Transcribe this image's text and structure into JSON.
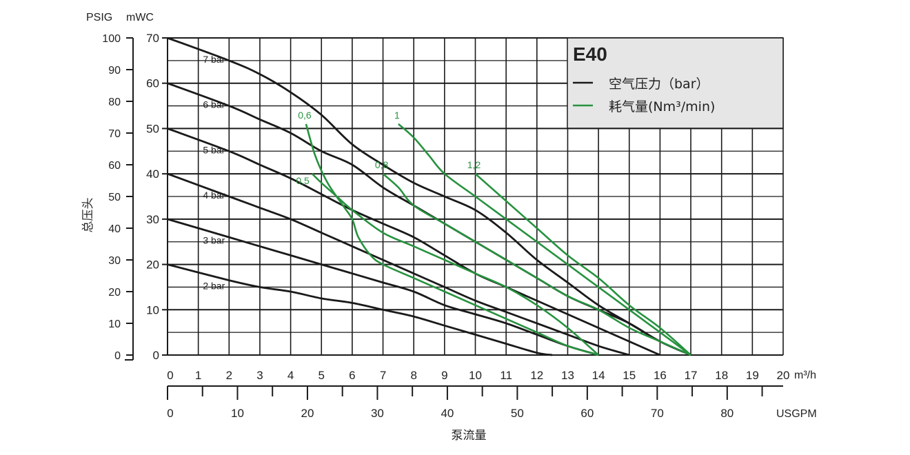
{
  "chart_data": {
    "type": "line",
    "title": "E40",
    "xlabel": "泵流量",
    "ylabel": "总压头",
    "x_unit": "m³/h",
    "x2_unit": "USGPM",
    "y_unit": "mWC",
    "y2_unit": "PSIG",
    "xlim": [
      0,
      20
    ],
    "ylim": [
      0,
      70
    ],
    "x2lim": [
      0,
      88
    ],
    "y2lim": [
      0,
      100
    ],
    "x_ticks": [
      "0",
      "1",
      "2",
      "3",
      "4",
      "5",
      "6",
      "7",
      "8",
      "9",
      "10",
      "11",
      "12",
      "13",
      "14",
      "15",
      "16",
      "17",
      "18",
      "19",
      "20"
    ],
    "y_ticks": [
      "0",
      "10",
      "20",
      "30",
      "40",
      "50",
      "60",
      "70"
    ],
    "x2_ticks": [
      "0",
      "10",
      "20",
      "30",
      "40",
      "50",
      "60",
      "70",
      "80"
    ],
    "y2_ticks": [
      "0",
      "10",
      "20",
      "30",
      "40",
      "50",
      "60",
      "70",
      "80",
      "90",
      "100"
    ],
    "grid": true,
    "legend": {
      "position": "top-right",
      "items": [
        {
          "label": "空气压力（bar）",
          "color": "#1a1a1a"
        },
        {
          "label": "耗气量(Nm³/min)",
          "color": "#27923f"
        }
      ]
    },
    "pressure_series": [
      {
        "name": "7 bar",
        "points": [
          [
            0,
            70
          ],
          [
            2,
            65
          ],
          [
            3,
            62
          ],
          [
            4,
            58
          ],
          [
            5,
            53
          ],
          [
            6,
            46.5
          ],
          [
            7,
            42
          ],
          [
            8,
            38
          ],
          [
            9,
            35
          ],
          [
            10,
            32
          ],
          [
            11,
            27
          ],
          [
            12,
            21
          ],
          [
            13,
            16
          ],
          [
            14,
            11
          ],
          [
            15,
            7
          ],
          [
            16,
            3
          ],
          [
            17,
            0
          ]
        ]
      },
      {
        "name": "6 bar",
        "points": [
          [
            0,
            60
          ],
          [
            2,
            55
          ],
          [
            3,
            52
          ],
          [
            4,
            49
          ],
          [
            5,
            45
          ],
          [
            6,
            42
          ],
          [
            7,
            37
          ],
          [
            8,
            33
          ],
          [
            9,
            29
          ],
          [
            10,
            25
          ],
          [
            11,
            21
          ],
          [
            12,
            17
          ],
          [
            13,
            13
          ],
          [
            14,
            10
          ],
          [
            15,
            7
          ],
          [
            16,
            3
          ],
          [
            17,
            0
          ]
        ]
      },
      {
        "name": "5 bar",
        "points": [
          [
            0,
            50
          ],
          [
            2,
            45
          ],
          [
            3,
            42
          ],
          [
            4,
            39
          ],
          [
            5,
            35.5
          ],
          [
            6,
            32
          ],
          [
            7,
            29
          ],
          [
            8,
            26
          ],
          [
            9,
            22
          ],
          [
            10,
            18
          ],
          [
            11,
            15
          ],
          [
            12,
            12
          ],
          [
            13,
            9
          ],
          [
            14,
            6
          ],
          [
            15,
            3
          ],
          [
            16,
            0
          ]
        ]
      },
      {
        "name": "4 bar",
        "points": [
          [
            0,
            40
          ],
          [
            2,
            35
          ],
          [
            3,
            32.5
          ],
          [
            4,
            30
          ],
          [
            5,
            27
          ],
          [
            6,
            24
          ],
          [
            7,
            21
          ],
          [
            8,
            18
          ],
          [
            9,
            15
          ],
          [
            10,
            12
          ],
          [
            11,
            9.5
          ],
          [
            12,
            7
          ],
          [
            13,
            4.5
          ],
          [
            14,
            2
          ],
          [
            15,
            0
          ]
        ]
      },
      {
        "name": "3 bar",
        "points": [
          [
            0,
            30
          ],
          [
            2,
            26
          ],
          [
            3,
            24
          ],
          [
            4,
            22
          ],
          [
            5,
            20
          ],
          [
            6,
            18
          ],
          [
            7,
            16
          ],
          [
            8,
            14
          ],
          [
            9,
            11
          ],
          [
            10,
            9
          ],
          [
            11,
            7
          ],
          [
            12,
            4.5
          ],
          [
            13,
            2
          ],
          [
            14,
            0
          ]
        ]
      },
      {
        "name": "2 bar",
        "points": [
          [
            0,
            20
          ],
          [
            2,
            16.5
          ],
          [
            3,
            15
          ],
          [
            4,
            14
          ],
          [
            5,
            12.5
          ],
          [
            6,
            11.5
          ],
          [
            7,
            10
          ],
          [
            8,
            8.5
          ],
          [
            9,
            6.5
          ],
          [
            10,
            4.5
          ],
          [
            11,
            2.5
          ],
          [
            12,
            0.5
          ],
          [
            12.5,
            0
          ]
        ]
      }
    ],
    "air_series": [
      {
        "name": "0,5",
        "points": [
          [
            4.7,
            40
          ],
          [
            5,
            38
          ],
          [
            5.5,
            35
          ],
          [
            6,
            32
          ],
          [
            7,
            27
          ],
          [
            8,
            24
          ],
          [
            9,
            21
          ],
          [
            10,
            18
          ],
          [
            11,
            15
          ],
          [
            12,
            11
          ],
          [
            13,
            6
          ],
          [
            14,
            0
          ]
        ]
      },
      {
        "name": "0,6",
        "points": [
          [
            4.5,
            51
          ],
          [
            4.8,
            44
          ],
          [
            5.2,
            38
          ],
          [
            5.7,
            33
          ],
          [
            6,
            30
          ],
          [
            6.2,
            26
          ],
          [
            6.6,
            22
          ],
          [
            7,
            20
          ],
          [
            8,
            17
          ],
          [
            9,
            14
          ],
          [
            10,
            11
          ],
          [
            11,
            8
          ],
          [
            12,
            5
          ],
          [
            13,
            2
          ],
          [
            14,
            0
          ]
        ]
      },
      {
        "name": "0,8",
        "points": [
          [
            7,
            40
          ],
          [
            7.5,
            37
          ],
          [
            8,
            33
          ],
          [
            9,
            29
          ],
          [
            10,
            25
          ],
          [
            11,
            21
          ],
          [
            12,
            17
          ],
          [
            13,
            13
          ],
          [
            14,
            10
          ],
          [
            15,
            6
          ],
          [
            16,
            3
          ],
          [
            17,
            0
          ]
        ]
      },
      {
        "name": "1",
        "points": [
          [
            7.5,
            51
          ],
          [
            8,
            48
          ],
          [
            8.5,
            44
          ],
          [
            9,
            40
          ],
          [
            10,
            35
          ],
          [
            11,
            30
          ],
          [
            12,
            25
          ],
          [
            13,
            20
          ],
          [
            14,
            15
          ],
          [
            15,
            10
          ],
          [
            16,
            5
          ],
          [
            17,
            0
          ]
        ]
      },
      {
        "name": "1,2",
        "points": [
          [
            10,
            40
          ],
          [
            11,
            34
          ],
          [
            12,
            28
          ],
          [
            13,
            22
          ],
          [
            14,
            17
          ],
          [
            15,
            11
          ],
          [
            16,
            6
          ],
          [
            17,
            0
          ]
        ]
      }
    ]
  }
}
